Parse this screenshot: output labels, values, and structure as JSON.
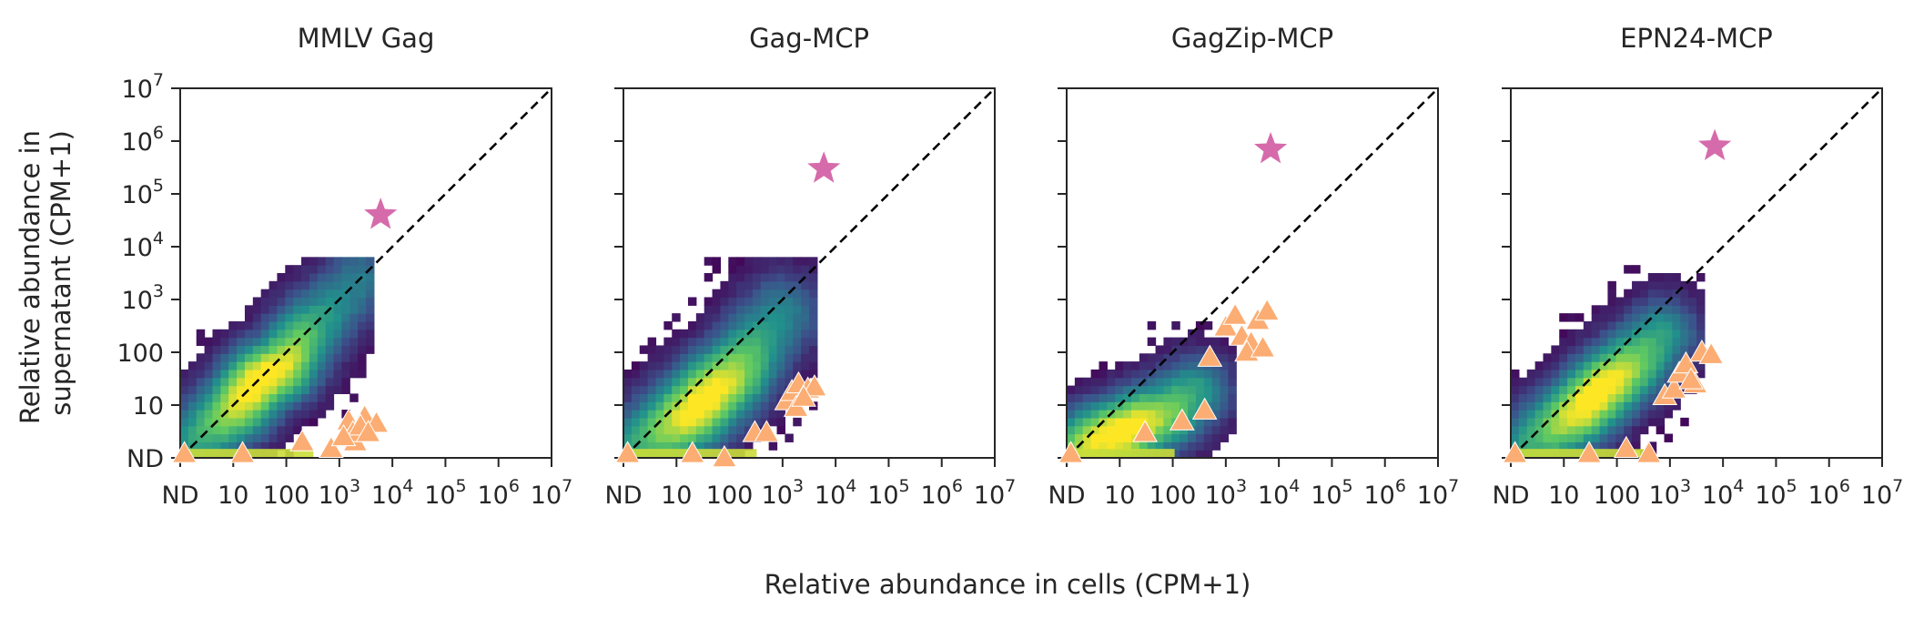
{
  "figure": {
    "ylabel_line1": "Relative abundance in",
    "ylabel_line2": "supernatant (CPM+1)",
    "xlabel": "Relative abundance in cells (CPM+1)"
  },
  "colors": {
    "star": "#d66bab",
    "triangle": "#fcad73",
    "diagonal": "#000000",
    "axis": "#262626",
    "colormap": "viridis"
  },
  "chart_data": [
    {
      "type": "heatmap",
      "title": "MMLV Gag",
      "x_scale": "log (ND = not detected, CPM+1 = 1)",
      "y_scale": "log (ND = not detected, CPM+1 = 1)",
      "xlim": [
        1,
        10000000
      ],
      "ylim": [
        1,
        10000000
      ],
      "tick_labels": [
        "ND",
        "10",
        "100",
        "10^3",
        "10^4",
        "10^5",
        "10^6",
        "10^7"
      ],
      "reference_line": "y = x (dashed)",
      "density_ridge": {
        "x_range": [
          1,
          3000
        ],
        "y_range": [
          1,
          4000
        ],
        "peak": [
          30,
          30
        ],
        "spread_log10": 0.5
      },
      "density_points": [
        [
          1,
          1
        ],
        [
          3,
          3
        ],
        [
          10,
          8
        ],
        [
          30,
          30
        ],
        [
          100,
          60
        ],
        [
          300,
          300
        ],
        [
          1000,
          1000
        ],
        [
          2500,
          2500
        ]
      ],
      "star": {
        "x": 6000,
        "y": 40000
      },
      "triangles": [
        [
          1.2,
          1.2
        ],
        [
          15,
          1.2
        ],
        [
          200,
          2
        ],
        [
          700,
          1.5
        ],
        [
          1500,
          5
        ],
        [
          2000,
          2
        ],
        [
          3000,
          6
        ],
        [
          1800,
          3
        ],
        [
          5000,
          4.5
        ],
        [
          2500,
          4
        ],
        [
          1200,
          2.5
        ],
        [
          3500,
          3
        ]
      ]
    },
    {
      "type": "heatmap",
      "title": "Gag-MCP",
      "x_scale": "log (ND = not detected, CPM+1 = 1)",
      "y_scale": "log (ND = not detected, CPM+1 = 1)",
      "xlim": [
        1,
        10000000
      ],
      "ylim": [
        1,
        10000000
      ],
      "tick_labels": [
        "ND",
        "10",
        "100",
        "10^3",
        "10^4",
        "10^5",
        "10^6",
        "10^7"
      ],
      "reference_line": "y = x (dashed)",
      "density_ridge": {
        "x_range": [
          1,
          3000
        ],
        "y_range": [
          1,
          5000
        ],
        "peak": [
          40,
          10
        ],
        "spread_log10": 0.55
      },
      "density_points": [
        [
          1,
          1
        ],
        [
          5,
          3
        ],
        [
          20,
          8
        ],
        [
          50,
          20
        ],
        [
          150,
          50
        ],
        [
          400,
          200
        ],
        [
          1000,
          600
        ]
      ],
      "star": {
        "x": 6000,
        "y": 300000
      },
      "triangles": [
        [
          1.2,
          1.2
        ],
        [
          20,
          1.2
        ],
        [
          80,
          1
        ],
        [
          300,
          3
        ],
        [
          500,
          3
        ],
        [
          1200,
          12
        ],
        [
          1500,
          18
        ],
        [
          2000,
          25
        ],
        [
          3000,
          20
        ],
        [
          4000,
          22
        ],
        [
          1800,
          9
        ],
        [
          2500,
          14
        ]
      ]
    },
    {
      "type": "heatmap",
      "title": "GagZip-MCP",
      "x_scale": "log (ND = not detected, CPM+1 = 1)",
      "y_scale": "log (ND = not detected, CPM+1 = 1)",
      "xlim": [
        1,
        10000000
      ],
      "ylim": [
        1,
        10000000
      ],
      "tick_labels": [
        "ND",
        "10",
        "100",
        "10^3",
        "10^4",
        "10^5",
        "10^6",
        "10^7"
      ],
      "reference_line": "y = x (dashed)",
      "density_ridge": {
        "x_range": [
          1,
          1000
        ],
        "y_range": [
          1,
          300
        ],
        "peak": [
          10,
          3
        ],
        "spread_log10": 0.5
      },
      "density_points": [
        [
          1,
          1
        ],
        [
          3,
          2
        ],
        [
          10,
          3
        ],
        [
          30,
          5
        ],
        [
          100,
          8
        ],
        [
          300,
          20
        ]
      ],
      "star": {
        "x": 7000,
        "y": 700000
      },
      "triangles": [
        [
          1.2,
          1.2
        ],
        [
          30,
          3
        ],
        [
          150,
          5
        ],
        [
          400,
          8
        ],
        [
          500,
          80
        ],
        [
          1000,
          300
        ],
        [
          1500,
          500
        ],
        [
          2000,
          200
        ],
        [
          3000,
          150
        ],
        [
          4000,
          400
        ],
        [
          6000,
          600
        ],
        [
          2500,
          100
        ],
        [
          5000,
          120
        ]
      ]
    },
    {
      "type": "heatmap",
      "title": "EPN24-MCP",
      "x_scale": "log (ND = not detected, CPM+1 = 1)",
      "y_scale": "log (ND = not detected, CPM+1 = 1)",
      "xlim": [
        1,
        10000000
      ],
      "ylim": [
        1,
        10000000
      ],
      "tick_labels": [
        "ND",
        "10",
        "100",
        "10^3",
        "10^4",
        "10^5",
        "10^6",
        "10^7"
      ],
      "reference_line": "y = x (dashed)",
      "density_ridge": {
        "x_range": [
          1,
          3000
        ],
        "y_range": [
          1,
          3000
        ],
        "peak": [
          40,
          15
        ],
        "spread_log10": 0.5
      },
      "density_points": [
        [
          1,
          1
        ],
        [
          5,
          3
        ],
        [
          20,
          8
        ],
        [
          50,
          20
        ],
        [
          200,
          60
        ],
        [
          800,
          250
        ]
      ],
      "star": {
        "x": 7000,
        "y": 800000
      },
      "triangles": [
        [
          1.2,
          1.2
        ],
        [
          30,
          1.2
        ],
        [
          150,
          1.5
        ],
        [
          400,
          1.2
        ],
        [
          800,
          15
        ],
        [
          1200,
          20
        ],
        [
          1500,
          40
        ],
        [
          2000,
          60
        ],
        [
          3000,
          25
        ],
        [
          4000,
          100
        ],
        [
          6000,
          90
        ],
        [
          2500,
          30
        ]
      ]
    }
  ]
}
